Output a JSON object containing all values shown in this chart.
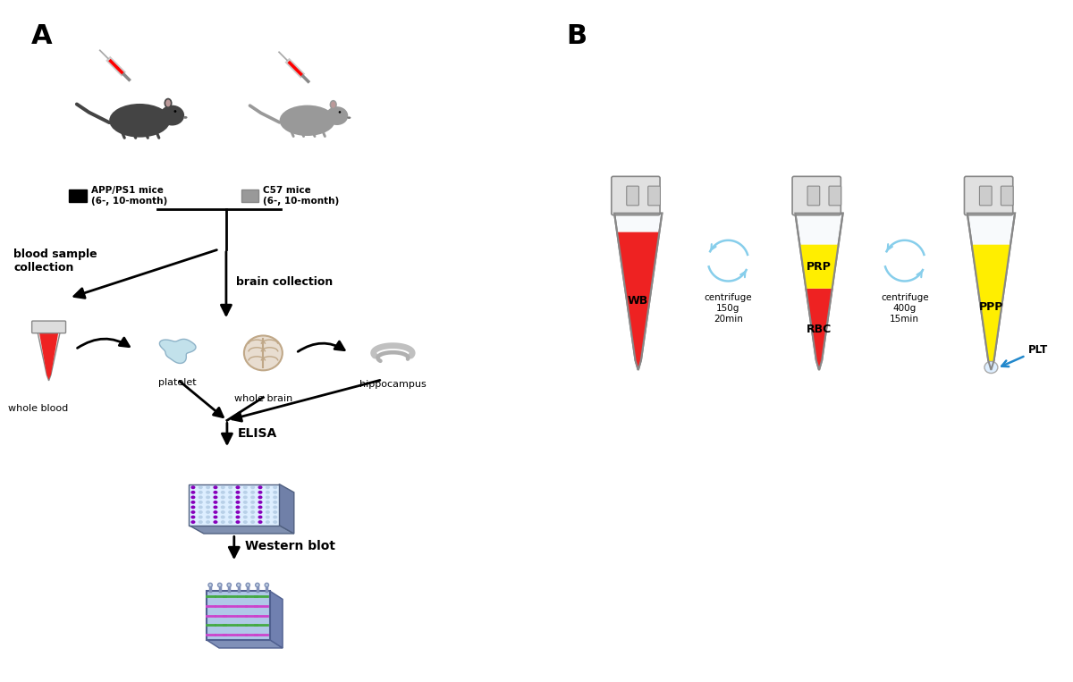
{
  "panel_A_label": "A",
  "panel_B_label": "B",
  "background_color": "#ffffff",
  "mouse1_label": "APP/PS1 mice\n(6-, 10-month)",
  "mouse2_label": "C57 mice\n(6-, 10-month)",
  "mouse1_color": "#444444",
  "mouse2_color": "#999999",
  "blood_label": "blood sample\ncollection",
  "brain_label": "brain collection",
  "whole_blood_label": "whole blood",
  "platelet_label": "platelet",
  "whole_brain_label": "whole brain",
  "hippocampus_label": "hippocampus",
  "elisa_label": "ELISA",
  "western_label": "Western blot",
  "tube1_label": "WB",
  "tube2_top_label": "PRP",
  "tube2_bot_label": "RBC",
  "tube3_label": "PPP",
  "plt_label": "PLT",
  "centrifuge1_label": "centrifuge\n150g\n20min",
  "centrifuge2_label": "centrifuge\n400g\n15min",
  "tube1_fill_color": "#ee2222",
  "tube2_top_color": "#ffee00",
  "tube2_bot_color": "#ee2222",
  "tube3_color": "#ffee00",
  "tube_outline_color": "#aaaaaa",
  "arrow_color": "#000000",
  "centrifuge_arrow_color": "#87ceeb"
}
